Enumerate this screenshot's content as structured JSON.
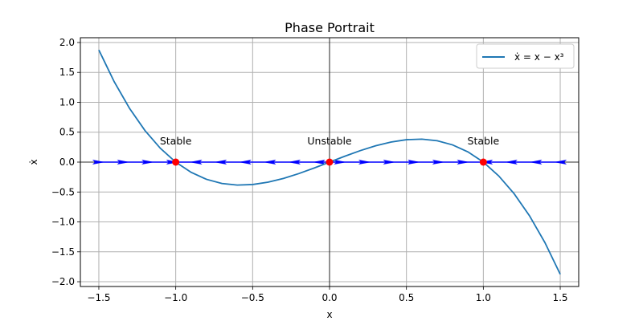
{
  "chart_data": {
    "type": "line",
    "title": "Phase Portrait",
    "xlabel": "x",
    "ylabel": "ẋ",
    "xlim": [
      -1.62,
      1.62
    ],
    "ylim": [
      -2.08,
      2.08
    ],
    "grid": true,
    "legend_position": "top-right",
    "x_ticks": [
      -1.5,
      -1.0,
      -0.5,
      0.0,
      0.5,
      1.0,
      1.5
    ],
    "x_tick_labels": [
      "−1.5",
      "−1.0",
      "−0.5",
      "0.0",
      "0.5",
      "1.0",
      "1.5"
    ],
    "y_ticks": [
      2.0,
      1.5,
      1.0,
      0.5,
      0.0,
      -0.5,
      -1.0,
      -1.5,
      -2.0
    ],
    "y_tick_labels": [
      "2.0",
      "1.5",
      "1.0",
      "0.5",
      "0.0",
      "−0.5",
      "−1.0",
      "−1.5",
      "−2.0"
    ],
    "series": [
      {
        "name": "ẋ = x − x³",
        "color": "#1f77b4",
        "x": [
          -1.5,
          -1.4,
          -1.3,
          -1.2,
          -1.1,
          -1.0,
          -0.9,
          -0.8,
          -0.7,
          -0.6,
          -0.5,
          -0.4,
          -0.3,
          -0.2,
          -0.1,
          0.0,
          0.1,
          0.2,
          0.3,
          0.4,
          0.5,
          0.6,
          0.7,
          0.8,
          0.9,
          1.0,
          1.1,
          1.2,
          1.3,
          1.4,
          1.5
        ],
        "y": [
          1.875,
          1.344,
          0.897,
          0.528,
          0.231,
          0.0,
          -0.171,
          -0.288,
          -0.357,
          -0.384,
          -0.375,
          -0.336,
          -0.273,
          -0.192,
          -0.099,
          0.0,
          0.099,
          0.192,
          0.273,
          0.336,
          0.375,
          0.384,
          0.357,
          0.288,
          0.171,
          0.0,
          -0.231,
          -0.528,
          -0.897,
          -1.344,
          -1.875
        ]
      }
    ],
    "fixed_points": [
      {
        "x": -1.0,
        "y": 0.0,
        "label": "Stable",
        "color": "#ff0000"
      },
      {
        "x": 0.0,
        "y": 0.0,
        "label": "Unstable",
        "color": "#ff0000"
      },
      {
        "x": 1.0,
        "y": 0.0,
        "label": "Stable",
        "color": "#ff0000"
      }
    ],
    "flow_arrows": {
      "color": "#0000ff",
      "x": [
        -1.5,
        -1.34,
        -1.18,
        -1.02,
        -0.87,
        -0.71,
        -0.55,
        -0.39,
        -0.23,
        -0.07,
        0.07,
        0.23,
        0.39,
        0.55,
        0.71,
        0.87,
        1.02,
        1.18,
        1.34,
        1.5
      ],
      "direction": [
        1,
        1,
        1,
        1,
        -1,
        -1,
        -1,
        -1,
        -1,
        -1,
        1,
        1,
        1,
        1,
        1,
        1,
        -1,
        -1,
        -1,
        -1
      ]
    }
  }
}
